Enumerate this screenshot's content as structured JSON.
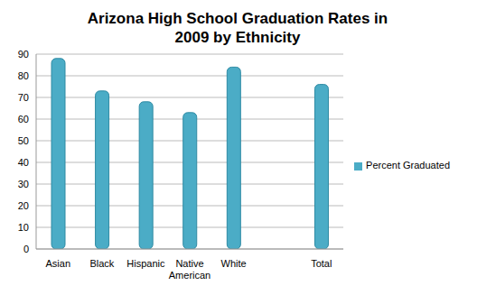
{
  "chart_data": {
    "type": "bar",
    "title": "Arizona High School Graduation Rates in 2009 by Ethnicity",
    "categories": [
      "Asian",
      "Black",
      "Hispanic",
      "Native American",
      "White",
      null,
      "Total"
    ],
    "series": [
      {
        "name": "Percent Graduated",
        "color": "#4bacc6",
        "values": [
          88,
          73,
          68,
          63,
          84,
          null,
          76
        ]
      }
    ],
    "ylim": [
      0,
      90
    ],
    "yticks": [
      0,
      10,
      20,
      30,
      40,
      50,
      60,
      70,
      80,
      90
    ],
    "grid": true,
    "legend": "right"
  }
}
